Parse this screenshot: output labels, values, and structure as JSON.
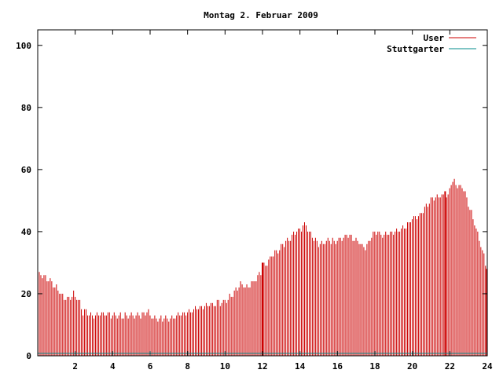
{
  "chart_data": {
    "type": "bar",
    "title": "Montag 2. Februar 2009",
    "xlabel": "",
    "ylabel": "",
    "xlim": [
      0,
      24
    ],
    "ylim": [
      0,
      105
    ],
    "xticks": [
      "2",
      "4",
      "6",
      "8",
      "10",
      "12",
      "14",
      "16",
      "18",
      "20",
      "22",
      "24"
    ],
    "yticks": [
      "0",
      "20",
      "40",
      "60",
      "80",
      "100"
    ],
    "grid": false,
    "legend_position": "top-right",
    "series": [
      {
        "name": "User",
        "color": "#cc0000",
        "anchors_hour": [
          0.0,
          0.5,
          1.0,
          1.3,
          1.6,
          1.9,
          2.2,
          2.4,
          2.6,
          3.0,
          3.4,
          4.0,
          4.5,
          5.0,
          5.5,
          5.9,
          6.2,
          7.0,
          7.5,
          8.0,
          8.5,
          9.0,
          9.5,
          9.9,
          10.3,
          10.8,
          11.2,
          11.7,
          12.1,
          12.5,
          13.0,
          13.5,
          13.8,
          14.0,
          14.3,
          14.6,
          15.0,
          15.5,
          16.0,
          16.5,
          17.0,
          17.5,
          18.0,
          18.5,
          19.0,
          19.5,
          20.0,
          20.5,
          21.0,
          21.5,
          21.9,
          22.1,
          22.4,
          22.7,
          23.0,
          23.3,
          23.6,
          24.0
        ],
        "anchors_value": [
          27,
          25,
          22,
          19,
          18,
          20,
          18,
          14,
          14,
          13,
          14,
          13,
          13,
          13,
          13,
          14,
          12,
          12,
          13,
          14,
          15,
          16,
          17,
          17,
          19,
          23,
          22,
          25,
          29,
          32,
          35,
          38,
          40,
          41,
          42,
          39,
          36,
          37,
          37,
          39,
          37,
          35,
          40,
          39,
          40,
          41,
          44,
          46,
          50,
          52,
          51,
          57,
          55,
          54,
          49,
          43,
          37,
          28
        ],
        "spikes": [
          {
            "x": 12.0,
            "value": 30
          },
          {
            "x": 21.75,
            "value": 53
          }
        ],
        "sample_step_hours": 0.0833
      },
      {
        "name": "Stuttgarter",
        "color": "#008b8b",
        "anchors_hour": [
          0,
          24
        ],
        "anchors_value": [
          0.8,
          0.8
        ]
      }
    ]
  }
}
